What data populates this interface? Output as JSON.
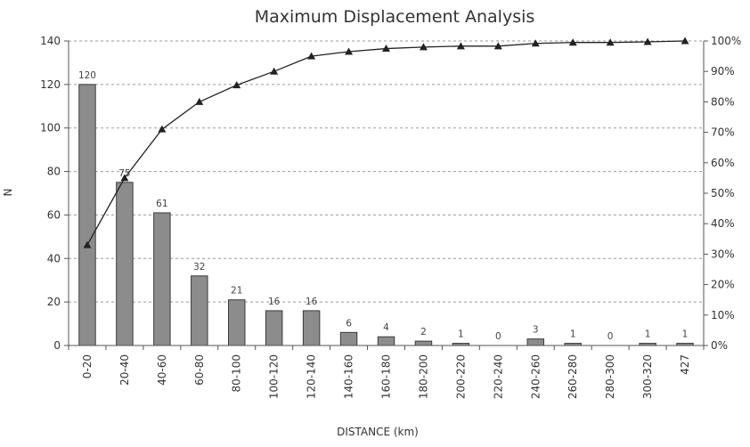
{
  "chart_data": {
    "type": "bar",
    "title": "Maximum Displacement Analysis",
    "xlabel": "DISTANCE (km)",
    "ylabel": "N",
    "categories": [
      "0-20",
      "20-40",
      "40-60",
      "60-80",
      "80-100",
      "100-120",
      "120-140",
      "140-160",
      "160-180",
      "180-200",
      "200-220",
      "220-240",
      "240-260",
      "260-280",
      "280-300",
      "300-320",
      "427"
    ],
    "series": [
      {
        "type": "bar",
        "axis": "left",
        "values": [
          120,
          75,
          61,
          32,
          21,
          16,
          16,
          6,
          4,
          2,
          1,
          0,
          3,
          1,
          0,
          1,
          1
        ],
        "color": "#8c8c8c"
      },
      {
        "type": "line",
        "axis": "right",
        "marker": "triangle",
        "values": [
          33,
          55,
          71,
          80,
          85.5,
          90,
          95,
          96.5,
          97.5,
          98,
          98.3,
          98.3,
          99.2,
          99.5,
          99.5,
          99.7,
          100
        ],
        "color": "#222222"
      }
    ],
    "data_labels": [
      "120",
      "75",
      "61",
      "32",
      "21",
      "16",
      "16",
      "6",
      "4",
      "2",
      "1",
      "0",
      "3",
      "1",
      "0",
      "1",
      "1"
    ],
    "ylim": [
      0,
      140
    ],
    "y_ticks": [
      "0",
      "20",
      "40",
      "60",
      "80",
      "100",
      "120",
      "140"
    ],
    "y2lim": [
      0,
      100
    ],
    "y2_ticks": [
      "0%",
      "10%",
      "20%",
      "30%",
      "40%",
      "50%",
      "60%",
      "70%",
      "80%",
      "90%",
      "100%"
    ],
    "grid": true,
    "legend": "none"
  }
}
